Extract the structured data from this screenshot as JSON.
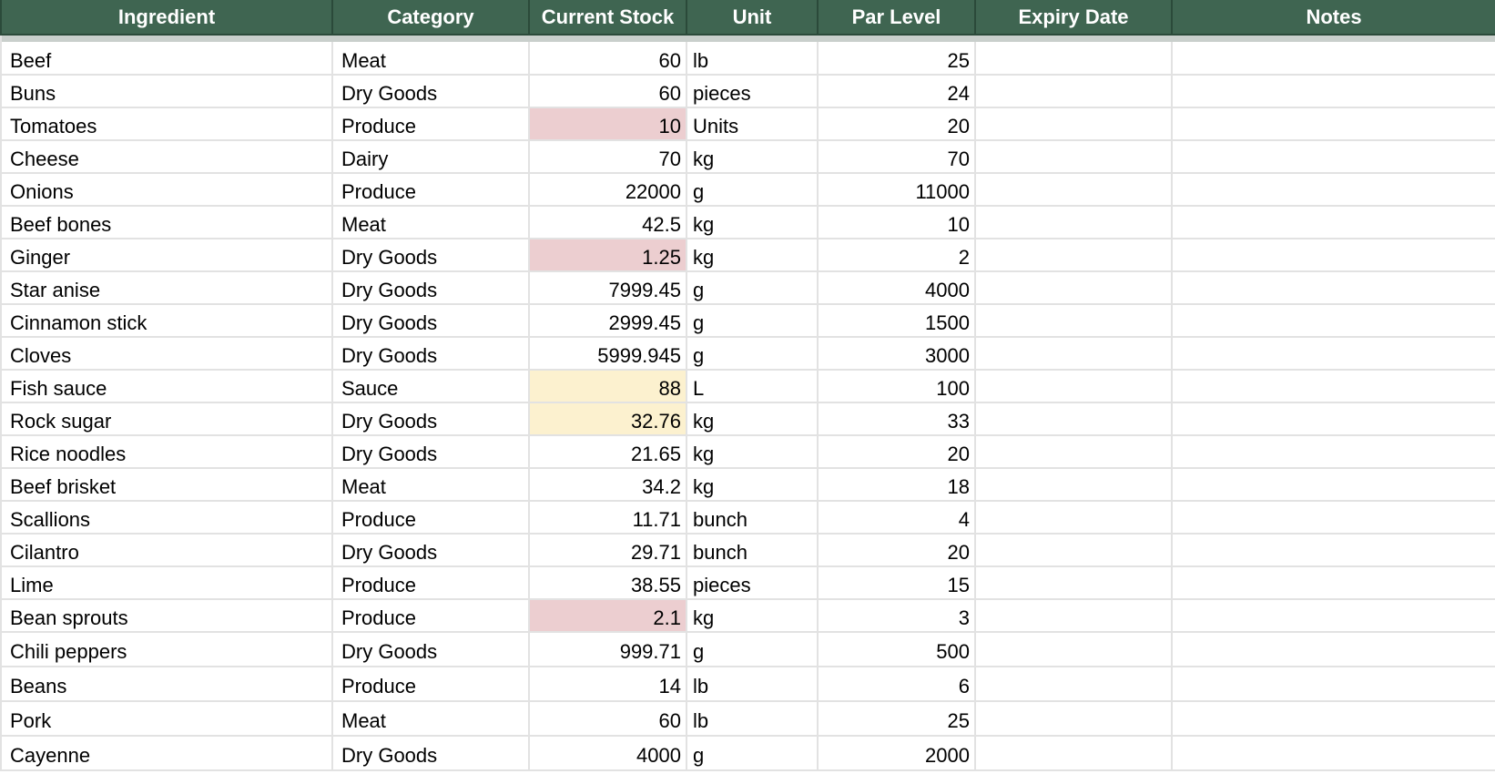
{
  "colors": {
    "header_bg": "#3f6551",
    "header_text": "#ffffff",
    "low_stock": "#ecced0",
    "near_par": "#fcf1cf",
    "grid": "#e2e2e2"
  },
  "columns": [
    "Ingredient",
    "Category",
    "Current Stock",
    "Unit",
    "Par Level",
    "Expiry Date",
    "Notes"
  ],
  "rows": [
    {
      "ingredient": "Beef",
      "category": "Meat",
      "stock": "60",
      "unit": "lb",
      "par": "25",
      "expiry": "",
      "notes": "",
      "status": ""
    },
    {
      "ingredient": "Buns",
      "category": "Dry Goods",
      "stock": "60",
      "unit": "pieces",
      "par": "24",
      "expiry": "",
      "notes": "",
      "status": ""
    },
    {
      "ingredient": "Tomatoes",
      "category": "Produce",
      "stock": "10",
      "unit": "Units",
      "par": "20",
      "expiry": "",
      "notes": "",
      "status": "low"
    },
    {
      "ingredient": "Cheese",
      "category": "Dairy",
      "stock": "70",
      "unit": "kg",
      "par": "70",
      "expiry": "",
      "notes": "",
      "status": ""
    },
    {
      "ingredient": "Onions",
      "category": "Produce",
      "stock": "22000",
      "unit": "g",
      "par": "11000",
      "expiry": "",
      "notes": "",
      "status": ""
    },
    {
      "ingredient": "Beef bones",
      "category": "Meat",
      "stock": "42.5",
      "unit": "kg",
      "par": "10",
      "expiry": "",
      "notes": "",
      "status": ""
    },
    {
      "ingredient": "Ginger",
      "category": "Dry Goods",
      "stock": "1.25",
      "unit": "kg",
      "par": "2",
      "expiry": "",
      "notes": "",
      "status": "low"
    },
    {
      "ingredient": "Star anise",
      "category": "Dry Goods",
      "stock": "7999.45",
      "unit": "g",
      "par": "4000",
      "expiry": "",
      "notes": "",
      "status": ""
    },
    {
      "ingredient": "Cinnamon stick",
      "category": "Dry Goods",
      "stock": "2999.45",
      "unit": "g",
      "par": "1500",
      "expiry": "",
      "notes": "",
      "status": ""
    },
    {
      "ingredient": "Cloves",
      "category": "Dry Goods",
      "stock": "5999.945",
      "unit": "g",
      "par": "3000",
      "expiry": "",
      "notes": "",
      "status": ""
    },
    {
      "ingredient": "Fish sauce",
      "category": "Sauce",
      "stock": "88",
      "unit": "L",
      "par": "100",
      "expiry": "",
      "notes": "",
      "status": "warn"
    },
    {
      "ingredient": "Rock sugar",
      "category": "Dry Goods",
      "stock": "32.76",
      "unit": "kg",
      "par": "33",
      "expiry": "",
      "notes": "",
      "status": "warn"
    },
    {
      "ingredient": "Rice noodles",
      "category": "Dry Goods",
      "stock": "21.65",
      "unit": "kg",
      "par": "20",
      "expiry": "",
      "notes": "",
      "status": ""
    },
    {
      "ingredient": "Beef brisket",
      "category": "Meat",
      "stock": "34.2",
      "unit": "kg",
      "par": "18",
      "expiry": "",
      "notes": "",
      "status": ""
    },
    {
      "ingredient": "Scallions",
      "category": "Produce",
      "stock": "11.71",
      "unit": "bunch",
      "par": "4",
      "expiry": "",
      "notes": "",
      "status": ""
    },
    {
      "ingredient": "Cilantro",
      "category": "Dry Goods",
      "stock": "29.71",
      "unit": "bunch",
      "par": "20",
      "expiry": "",
      "notes": "",
      "status": ""
    },
    {
      "ingredient": "Lime",
      "category": "Produce",
      "stock": "38.55",
      "unit": "pieces",
      "par": "15",
      "expiry": "",
      "notes": "",
      "status": ""
    },
    {
      "ingredient": "Bean sprouts",
      "category": "Produce",
      "stock": "2.1",
      "unit": "kg",
      "par": "3",
      "expiry": "",
      "notes": "",
      "status": "low"
    },
    {
      "ingredient": "Chili peppers",
      "category": "Dry Goods",
      "stock": "999.71",
      "unit": "g",
      "par": "500",
      "expiry": "",
      "notes": "",
      "status": ""
    },
    {
      "ingredient": "Beans",
      "category": "Produce",
      "stock": "14",
      "unit": "lb",
      "par": "6",
      "expiry": "",
      "notes": "",
      "status": ""
    },
    {
      "ingredient": "Pork",
      "category": "Meat",
      "stock": "60",
      "unit": "lb",
      "par": "25",
      "expiry": "",
      "notes": "",
      "status": ""
    },
    {
      "ingredient": "Cayenne",
      "category": "Dry Goods",
      "stock": "4000",
      "unit": "g",
      "par": "2000",
      "expiry": "",
      "notes": "",
      "status": ""
    }
  ]
}
